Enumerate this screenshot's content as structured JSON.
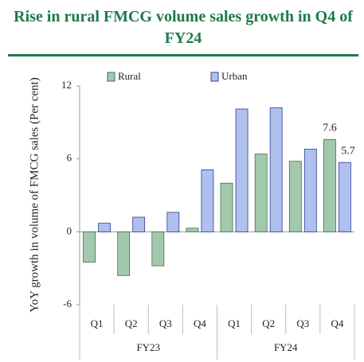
{
  "chart_data": {
    "type": "bar",
    "title": "Rise in rural FMCG volume sales growth in Q4 of FY24",
    "ylabel": "YoY growth in volume of FMCG sales (Per cent)",
    "categories": [
      "Q1",
      "Q2",
      "Q3",
      "Q4",
      "Q1",
      "Q2",
      "Q3",
      "Q4"
    ],
    "groups": [
      "FY23",
      "FY24"
    ],
    "series": [
      {
        "name": "Rural",
        "color": "#a3c9ad",
        "stroke": "#3d6e4e",
        "values": [
          -2.5,
          -3.6,
          -2.8,
          0.3,
          4.0,
          6.4,
          5.8,
          7.6
        ],
        "value_labels": [
          null,
          null,
          null,
          null,
          null,
          null,
          null,
          "7.6"
        ]
      },
      {
        "name": "Urban",
        "color": "#b0c0ee",
        "stroke": "#2b3f8f",
        "values": [
          0.7,
          1.2,
          1.6,
          5.1,
          10.1,
          10.2,
          6.8,
          5.7
        ],
        "value_labels": [
          null,
          null,
          null,
          null,
          null,
          null,
          null,
          "5.7"
        ]
      }
    ],
    "ylim": [
      -6,
      12
    ],
    "yticks": [
      -6,
      0,
      6,
      12
    ],
    "grid": false
  }
}
